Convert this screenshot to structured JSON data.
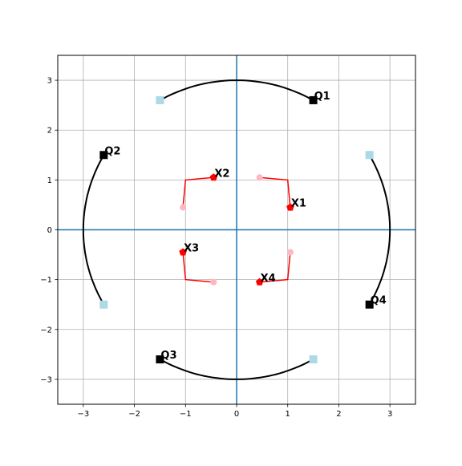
{
  "chart_data": {
    "type": "scatter",
    "title": "",
    "xlabel": "",
    "ylabel": "",
    "xlim": [
      -3.5,
      3.5
    ],
    "ylim": [
      -3.5,
      3.5
    ],
    "xticks": [
      -3,
      -2,
      -1,
      0,
      1,
      2,
      3
    ],
    "yticks": [
      -3,
      -2,
      -1,
      0,
      1,
      2,
      3
    ],
    "grid": true,
    "colors": {
      "axis_lines": "#1f77b4",
      "grid": "#b0b0b0",
      "q_markers": "#000000",
      "q_ghost": "#add8e6",
      "x_markers": "#ff0000",
      "x_ghost": "#ffb6c1",
      "arcs": "#000000",
      "x_paths": "#ff0000"
    },
    "q_points": [
      {
        "label": "Q1",
        "x": 1.5,
        "y": 2.6
      },
      {
        "label": "Q2",
        "x": -2.6,
        "y": 1.5
      },
      {
        "label": "Q3",
        "x": -1.5,
        "y": -2.6
      },
      {
        "label": "Q4",
        "x": 2.6,
        "y": -1.5
      }
    ],
    "q_ghost_points": [
      {
        "x": -1.5,
        "y": 2.6
      },
      {
        "x": -2.6,
        "y": -1.5
      },
      {
        "x": 1.5,
        "y": -2.6
      },
      {
        "x": 2.6,
        "y": 1.5
      }
    ],
    "x_points": [
      {
        "label": "X1",
        "x": 1.05,
        "y": 0.45
      },
      {
        "label": "X2",
        "x": -0.45,
        "y": 1.05
      },
      {
        "label": "X3",
        "x": -1.05,
        "y": -0.45
      },
      {
        "label": "X4",
        "x": 0.45,
        "y": -1.05
      }
    ],
    "x_ghost_points": [
      {
        "x": 0.45,
        "y": 1.05
      },
      {
        "x": -1.05,
        "y": 0.45
      },
      {
        "x": -0.45,
        "y": -1.05
      },
      {
        "x": 1.05,
        "y": -0.45
      }
    ],
    "arcs": [
      {
        "radius": 3,
        "start_deg": 120,
        "end_deg": 60
      },
      {
        "radius": 3,
        "start_deg": 150,
        "end_deg": 210
      },
      {
        "radius": 3,
        "start_deg": 240,
        "end_deg": 300
      },
      {
        "radius": 3,
        "start_deg": 30,
        "end_deg": -30
      }
    ],
    "x_paths": [
      [
        [
          0.45,
          1.05
        ],
        [
          1.0,
          1.0
        ],
        [
          1.05,
          0.45
        ]
      ],
      [
        [
          -0.45,
          1.05
        ],
        [
          -1.0,
          1.0
        ],
        [
          -1.05,
          0.45
        ]
      ],
      [
        [
          -1.05,
          -0.45
        ],
        [
          -1.0,
          -1.0
        ],
        [
          -0.45,
          -1.05
        ]
      ],
      [
        [
          0.45,
          -1.05
        ],
        [
          1.0,
          -1.0
        ],
        [
          1.05,
          -0.45
        ]
      ]
    ]
  }
}
